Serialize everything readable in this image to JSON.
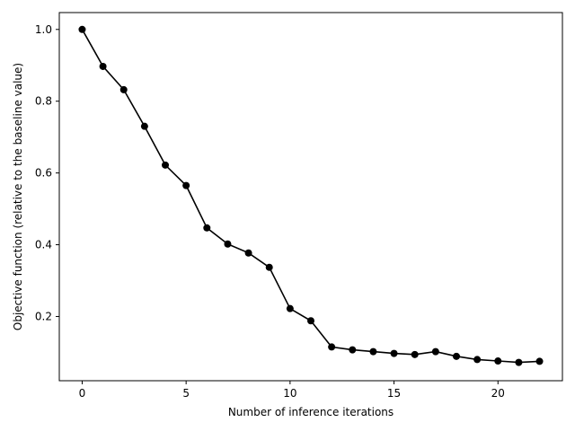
{
  "chart_data": {
    "type": "line",
    "title": "",
    "xlabel": "Number of inference iterations",
    "ylabel": "Objective function (relative to the baseline value)",
    "xlim": [
      -1.1,
      23.1
    ],
    "ylim": [
      0.021,
      1.047
    ],
    "xticks": [
      0,
      5,
      10,
      15,
      20
    ],
    "yticks": [
      0.2,
      0.4,
      0.6,
      0.8,
      1.0
    ],
    "xtick_labels": [
      "0",
      "5",
      "10",
      "15",
      "20"
    ],
    "ytick_labels": [
      "0.2",
      "0.4",
      "0.6",
      "0.8",
      "1.0"
    ],
    "grid": false,
    "series": [
      {
        "color": "#000000",
        "marker": "circle",
        "x": [
          0,
          1,
          2,
          3,
          4,
          5,
          6,
          7,
          8,
          9,
          10,
          11,
          12,
          13,
          14,
          15,
          16,
          17,
          18,
          19,
          20,
          21,
          22
        ],
        "y": [
          1.0,
          0.897,
          0.832,
          0.73,
          0.622,
          0.565,
          0.447,
          0.402,
          0.377,
          0.337,
          0.222,
          0.188,
          0.115,
          0.107,
          0.102,
          0.097,
          0.094,
          0.102,
          0.089,
          0.08,
          0.076,
          0.072,
          0.075
        ]
      }
    ]
  }
}
